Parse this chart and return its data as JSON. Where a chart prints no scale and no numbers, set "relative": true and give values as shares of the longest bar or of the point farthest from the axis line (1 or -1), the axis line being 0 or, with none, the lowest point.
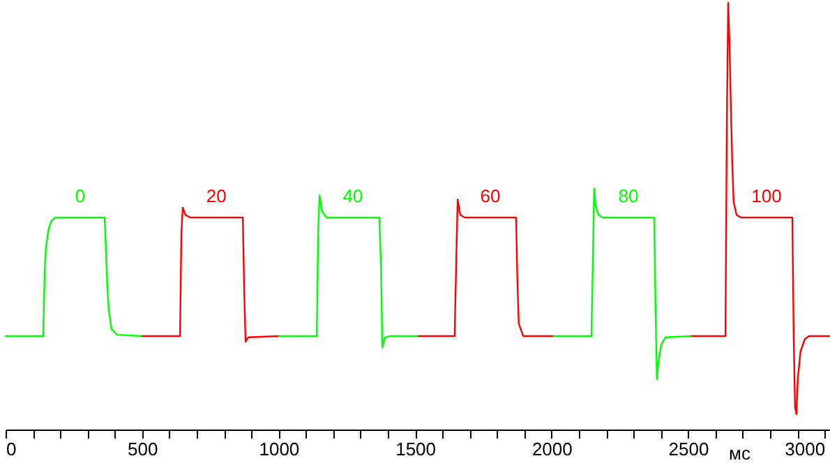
{
  "chart_data": {
    "type": "line",
    "relative": true,
    "xlabel": "мс",
    "xlim": [
      0,
      3020
    ],
    "xticks": [
      0,
      {
        "value": 100,
        "label": null
      },
      {
        "value": 200,
        "label": null
      },
      {
        "value": 300,
        "label": null
      },
      {
        "value": 400,
        "label": null
      },
      500,
      {
        "value": 600,
        "label": null
      },
      {
        "value": 700,
        "label": null
      },
      {
        "value": 800,
        "label": null
      },
      {
        "value": 900,
        "label": null
      },
      1000,
      {
        "value": 1100,
        "label": null
      },
      {
        "value": 1200,
        "label": null
      },
      {
        "value": 1300,
        "label": null
      },
      {
        "value": 1400,
        "label": null
      },
      1500,
      {
        "value": 1600,
        "label": null
      },
      {
        "value": 1700,
        "label": null
      },
      {
        "value": 1800,
        "label": null
      },
      {
        "value": 1900,
        "label": null
      },
      2000,
      {
        "value": 2100,
        "label": null
      },
      {
        "value": 2200,
        "label": null
      },
      {
        "value": 2300,
        "label": null
      },
      {
        "value": 2400,
        "label": null
      },
      2500,
      {
        "value": 2600,
        "label": null
      },
      {
        "value": 2700,
        "label": null
      },
      {
        "value": 2800,
        "label": null
      },
      {
        "value": 2900,
        "label": null
      },
      3000
    ],
    "line_style": "solid",
    "series": [
      {
        "color": "#00ff00",
        "x": [
          0,
          138,
          143,
          148,
          158,
          169,
          184,
          363,
          373,
          378,
          388,
          409,
          501
        ],
        "values": [
          0.219,
          0.219,
          0.369,
          0.428,
          0.471,
          0.49,
          0.497,
          0.497,
          0.33,
          0.281,
          0.235,
          0.222,
          0.219
        ]
      },
      {
        "color": "#ff0000",
        "x": [
          501,
          639,
          644,
          649,
          659,
          675,
          869,
          874,
          879,
          889,
          1002
        ],
        "values": [
          0.219,
          0.219,
          0.461,
          0.52,
          0.503,
          0.497,
          0.497,
          0.33,
          0.206,
          0.216,
          0.219
        ]
      },
      {
        "color": "#00ff00",
        "x": [
          1002,
          1140,
          1145,
          1150,
          1160,
          1175,
          1369,
          1375,
          1380,
          1390,
          1410,
          1513
        ],
        "values": [
          0.219,
          0.219,
          0.461,
          0.549,
          0.51,
          0.497,
          0.497,
          0.386,
          0.193,
          0.216,
          0.219,
          0.219
        ]
      },
      {
        "color": "#ff0000",
        "x": [
          1513,
          1645,
          1650,
          1656,
          1666,
          1681,
          1870,
          1875,
          1880,
          1896,
          2008
        ],
        "values": [
          0.219,
          0.219,
          0.369,
          0.539,
          0.503,
          0.497,
          0.497,
          0.346,
          0.248,
          0.219,
          0.219
        ]
      },
      {
        "color": "#00ff00",
        "x": [
          2008,
          2146,
          2151,
          2156,
          2161,
          2172,
          2187,
          2376,
          2381,
          2386,
          2391,
          2402,
          2417,
          2514
        ],
        "values": [
          0.219,
          0.219,
          0.386,
          0.565,
          0.526,
          0.503,
          0.497,
          0.497,
          0.275,
          0.118,
          0.157,
          0.199,
          0.216,
          0.219
        ]
      },
      {
        "color": "#ff0000",
        "x": [
          2514,
          2637,
          2642,
          2647,
          2652,
          2657,
          2662,
          2667,
          2678,
          2693,
          2882,
          2887,
          2892,
          2897,
          2902,
          2912,
          2928,
          2943,
          3020
        ],
        "values": [
          0.219,
          0.219,
          0.712,
          1,
          0.902,
          0.748,
          0.624,
          0.533,
          0.503,
          0.497,
          0.497,
          0.216,
          0.052,
          0.036,
          0.118,
          0.183,
          0.212,
          0.219,
          0.219
        ]
      }
    ],
    "annotations": [
      "0",
      "20",
      "40",
      "60",
      "80",
      "100"
    ]
  }
}
